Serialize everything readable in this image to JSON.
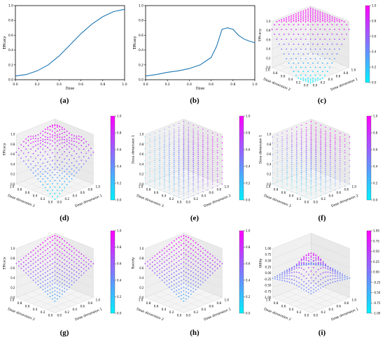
{
  "chart_data": [
    {
      "id": "a",
      "type": "line",
      "caption": "(a)",
      "xlabel": "Dose",
      "ylabel": "Efficacy",
      "xlim": [
        0,
        1
      ],
      "ylim": [
        0,
        1
      ],
      "xticks": [
        "0.0",
        "0.2",
        "0.4",
        "0.6",
        "0.8",
        "1.0"
      ],
      "yticks": [
        "0.0",
        "0.2",
        "0.4",
        "0.6",
        "0.8",
        "1.0"
      ],
      "x": [
        0.0,
        0.1,
        0.2,
        0.3,
        0.4,
        0.5,
        0.6,
        0.7,
        0.8,
        0.9,
        1.0
      ],
      "y": [
        0.05,
        0.07,
        0.12,
        0.2,
        0.32,
        0.47,
        0.62,
        0.75,
        0.85,
        0.92,
        0.95
      ],
      "color": "#1f77b4"
    },
    {
      "id": "b",
      "type": "line",
      "caption": "(b)",
      "xlabel": "Dose",
      "ylabel": "Efficacy",
      "xlim": [
        0,
        1
      ],
      "ylim": [
        0,
        1
      ],
      "xticks": [
        "0.0",
        "0.2",
        "0.4",
        "0.6",
        "0.8",
        "1.0"
      ],
      "yticks": [
        "0.0",
        "0.2",
        "0.4",
        "0.6",
        "0.8",
        "1.0"
      ],
      "x": [
        0.0,
        0.1,
        0.2,
        0.3,
        0.4,
        0.5,
        0.55,
        0.6,
        0.65,
        0.7,
        0.75,
        0.8,
        0.85,
        0.9,
        0.95,
        1.0
      ],
      "y": [
        0.05,
        0.07,
        0.1,
        0.12,
        0.15,
        0.2,
        0.25,
        0.3,
        0.45,
        0.68,
        0.7,
        0.68,
        0.6,
        0.55,
        0.52,
        0.5
      ],
      "color": "#1f77b4"
    },
    {
      "id": "c",
      "type": "scatter3d",
      "caption": "(c)",
      "shape": "dome",
      "xlabel": "Dose dimension 1",
      "ylabel": "Dose dimension 2",
      "zlabel": "Efficacy",
      "zticks": [
        "0.0",
        "0.2",
        "0.4",
        "0.6",
        "0.8",
        "1.0"
      ],
      "colorbar": {
        "ticks": [
          "0.0",
          "0.2",
          "0.4",
          "0.6",
          "0.8",
          "1.0"
        ],
        "min": 0,
        "max": 1
      }
    },
    {
      "id": "d",
      "type": "scatter3d",
      "caption": "(d)",
      "shape": "wavy",
      "xlabel": "Dose dimension 1",
      "ylabel": "Dose dimension 2",
      "zlabel": "Efficacy",
      "zticks": [
        "0.0",
        "0.2",
        "0.4",
        "0.6",
        "0.8",
        "1.0"
      ],
      "colorbar": {
        "ticks": [
          "0.0",
          "0.2",
          "0.4",
          "0.6",
          "0.8",
          "1.0"
        ],
        "min": 0,
        "max": 1
      }
    },
    {
      "id": "e",
      "type": "scatter3d",
      "caption": "(e)",
      "shape": "volume",
      "xlabel": "Dose dimension 2",
      "ylabel": "Dose dimension 3",
      "zlabel": "Dose dimension 1",
      "zticks": [
        "0.0",
        "0.2",
        "0.4",
        "0.6",
        "0.8",
        "1.0"
      ],
      "colorbar": {
        "ticks": [
          "0.0",
          "0.2",
          "0.4",
          "0.6",
          "0.8",
          "1.0"
        ],
        "min": 0,
        "max": 1
      }
    },
    {
      "id": "f",
      "type": "scatter3d",
      "caption": "(f)",
      "shape": "volume",
      "xlabel": "Dose dimension 2",
      "ylabel": "Dose dimension 3",
      "zlabel": "Dose dimension 1",
      "zticks": [
        "0.0",
        "0.2",
        "0.4",
        "0.6",
        "0.8",
        "1.0"
      ],
      "colorbar": {
        "ticks": [
          "0.0",
          "0.2",
          "0.4",
          "0.6",
          "0.8",
          "1.0"
        ],
        "min": 0,
        "max": 1
      }
    },
    {
      "id": "g",
      "type": "scatter3d",
      "caption": "(g)",
      "shape": "ridge",
      "xlabel": "Dose dimension 1",
      "ylabel": "Dose dimension 2",
      "zlabel": "Efficacy",
      "zticks": [
        "0.0",
        "0.2",
        "0.4",
        "0.6",
        "0.8",
        "1.0"
      ],
      "colorbar": {
        "ticks": [
          "0.0",
          "0.2",
          "0.4",
          "0.6",
          "0.8",
          "1.0"
        ],
        "min": 0,
        "max": 1
      }
    },
    {
      "id": "h",
      "type": "scatter3d",
      "caption": "(h)",
      "shape": "ridge",
      "xlabel": "Dose dimension 1",
      "ylabel": "Dose dimension 2",
      "zlabel": "Toxicity",
      "zticks": [
        "0.0",
        "0.2",
        "0.4",
        "0.6",
        "0.8",
        "1.0"
      ],
      "colorbar": {
        "ticks": [
          "0.0",
          "0.2",
          "0.4",
          "0.6",
          "0.8",
          "1.0"
        ],
        "min": 0,
        "max": 1
      }
    },
    {
      "id": "i",
      "type": "scatter3d",
      "caption": "(i)",
      "shape": "utility",
      "xlabel": "Dose dimension 1",
      "ylabel": "Dose dimension 2",
      "zlabel": "Utility",
      "zticks": [
        "-1.00",
        "-0.75",
        "-0.50",
        "-0.25",
        "0.00",
        "0.25",
        "0.50",
        "0.75",
        "1.00"
      ],
      "colorbar": {
        "ticks": [
          "-1.00",
          "-0.75",
          "-0.50",
          "-0.25",
          "0.00",
          "0.25",
          "0.50",
          "0.75",
          "1.00"
        ],
        "min": -1,
        "max": 1
      }
    }
  ]
}
